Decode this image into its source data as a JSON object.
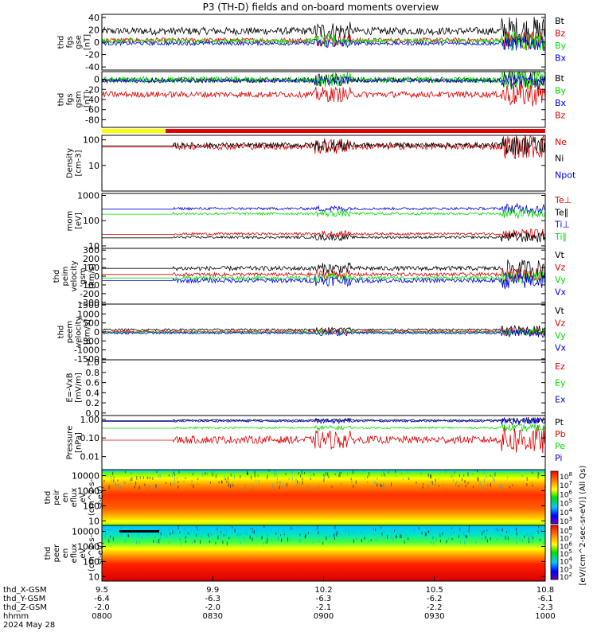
{
  "title": "P3 (TH-D) fields and on-board moments overview",
  "footer": {
    "row_labels": [
      "thd_X-GSM",
      "thd_Y-GSM",
      "thd_Z-GSM",
      "hhmm",
      "2024 May 28"
    ],
    "columns": [
      {
        "x": "9.5",
        "y": "-6.4",
        "z": "-2.0",
        "hhmm": "0800"
      },
      {
        "x": "9.9",
        "y": "-6.3",
        "z": "-2.0",
        "hhmm": "0830"
      },
      {
        "x": "10.2",
        "y": "-6.3",
        "z": "-2.1",
        "hhmm": "0900"
      },
      {
        "x": "10.5",
        "y": "-6.2",
        "z": "-2.2",
        "hhmm": "0930"
      },
      {
        "x": "10.8",
        "y": "-6.1",
        "z": "-2.3",
        "hhmm": "1000"
      }
    ]
  },
  "colorbar": {
    "label": "[eV/(cm^2-sec-sr-eV)] (All Qs)",
    "ticks_upper": [
      "10^8",
      "10^7",
      "10^6",
      "10^5",
      "10^4",
      "10^3"
    ],
    "ticks_lower": [
      "10^8",
      "10^7",
      "10^6",
      "10^5",
      "10^4",
      "10^3",
      "10^2"
    ]
  },
  "colors": {
    "black": "#000000",
    "red": "#e00000",
    "green": "#00dd00",
    "blue": "#0000e0",
    "yellow": "#ffff00"
  },
  "chart_data": [
    {
      "type": "line",
      "ylabel": [
        "thd",
        "fgs",
        "gse",
        "[nT]"
      ],
      "yticks": [
        "40",
        "20",
        "0",
        "-20",
        "-40"
      ],
      "ylim": [
        -45,
        45
      ],
      "series": [
        {
          "name": "Bt",
          "color": "black",
          "level": 18,
          "amp": 6
        },
        {
          "name": "Bz",
          "color": "red",
          "level": 3,
          "amp": 4
        },
        {
          "name": "By",
          "color": "green",
          "level": 2,
          "amp": 4
        },
        {
          "name": "Bx",
          "color": "blue",
          "level": -2,
          "amp": 3
        }
      ]
    },
    {
      "type": "line",
      "ylabel": [
        "thd",
        "fgs",
        "gsm",
        "[nT]"
      ],
      "yticks": [
        "0",
        "-20",
        "-40",
        "-60",
        "-80"
      ],
      "ylim": [
        -95,
        15
      ],
      "series": [
        {
          "name": "Bt",
          "color": "black",
          "level": -2,
          "amp": 5
        },
        {
          "name": "By",
          "color": "green",
          "level": -1,
          "amp": 6
        },
        {
          "name": "Bx",
          "color": "blue",
          "level": -3,
          "amp": 3
        },
        {
          "name": "Bz",
          "color": "red",
          "level": -30,
          "amp": 6
        }
      ]
    },
    {
      "type": "line",
      "log": true,
      "ylabel": [
        "Density",
        "[cm-3]"
      ],
      "yticks": [
        "100",
        "10"
      ],
      "ylim": [
        1,
        150
      ],
      "series": [
        {
          "name": "Ne",
          "color": "red",
          "level": 55,
          "amp": 0.12
        },
        {
          "name": "Ni",
          "color": "black",
          "level": 62,
          "amp": 0.1
        },
        {
          "name": "Npot",
          "color": "blue",
          "level": null,
          "amp": 0
        }
      ]
    },
    {
      "type": "line",
      "log": true,
      "ylabel": [
        "mom",
        "[eV]"
      ],
      "yticks": [
        "1000",
        "100",
        "10"
      ],
      "ylim": [
        8,
        1200
      ],
      "series": [
        {
          "name": "Te⊥",
          "color": "red",
          "level": 30,
          "amp": 0.05
        },
        {
          "name": "Te∥",
          "color": "black",
          "level": 22,
          "amp": 0.05
        },
        {
          "name": "Ti⊥",
          "color": "blue",
          "level": 300,
          "amp": 0.05
        },
        {
          "name": "Ti∥",
          "color": "green",
          "level": 190,
          "amp": 0.05
        }
      ]
    },
    {
      "type": "line",
      "ylabel": [
        "thd",
        "peim",
        "velocity",
        "gsm",
        "[km/s]"
      ],
      "yticks": [
        "300",
        "200",
        "100",
        "0",
        "-100",
        "-200",
        "-300"
      ],
      "ylim": [
        -320,
        320
      ],
      "series": [
        {
          "name": "Vt",
          "color": "black",
          "level": 90,
          "amp": 25
        },
        {
          "name": "Vz",
          "color": "red",
          "level": 20,
          "amp": 20
        },
        {
          "name": "Vy",
          "color": "green",
          "level": -20,
          "amp": 20
        },
        {
          "name": "Vx",
          "color": "blue",
          "level": -50,
          "amp": 25
        }
      ]
    },
    {
      "type": "line",
      "ylabel": [
        "thd",
        "peem",
        "velocity",
        "[km/s]"
      ],
      "yticks": [
        "1500",
        "1000",
        "500",
        "0",
        "-500",
        "-1000",
        "-1500"
      ],
      "ylim": [
        -1550,
        1550
      ],
      "series": [
        {
          "name": "Vt",
          "color": "black",
          "level": 120,
          "amp": 60
        },
        {
          "name": "Vz",
          "color": "red",
          "level": 20,
          "amp": 50
        },
        {
          "name": "Vy",
          "color": "green",
          "level": -20,
          "amp": 50
        },
        {
          "name": "Vx",
          "color": "blue",
          "level": -60,
          "amp": 60
        }
      ]
    },
    {
      "type": "line",
      "ylabel": [
        "E=-VxB",
        "[mV/m]"
      ],
      "yticks": [
        "1.0",
        "0.8",
        "0.6",
        "0.4",
        "0.2",
        "0.0"
      ],
      "ylim": [
        -0.05,
        1.05
      ],
      "series": [
        {
          "name": "Ez",
          "color": "red",
          "level": null,
          "amp": 0
        },
        {
          "name": "Ey",
          "color": "green",
          "level": null,
          "amp": 0
        },
        {
          "name": "Ex",
          "color": "blue",
          "level": null,
          "amp": 0
        }
      ]
    },
    {
      "type": "line",
      "log": true,
      "ylabel": [
        "Pressure",
        "[nPa]"
      ],
      "yticks": [
        "1.00",
        "0.10",
        "0.01"
      ],
      "ylim": [
        0.002,
        1.6
      ],
      "series": [
        {
          "name": "Pt",
          "color": "black",
          "level": 0.9,
          "amp": 0.04
        },
        {
          "name": "Pb",
          "color": "red",
          "level": 0.08,
          "amp": 0.2
        },
        {
          "name": "Pe",
          "color": "green",
          "level": 0.35,
          "amp": 0.05
        },
        {
          "name": "Pi",
          "color": "blue",
          "level": 0.8,
          "amp": 0.05
        }
      ]
    },
    {
      "type": "heatmap",
      "ylabel": [
        "thd",
        "peir",
        "en",
        "eflux",
        "eV",
        "(cm^2-s-",
        "sr-eV)"
      ],
      "yticks": [
        "10000",
        "1000",
        "100",
        "10"
      ],
      "ylim": [
        5,
        25000
      ]
    },
    {
      "type": "heatmap",
      "ylabel": [
        "thd",
        "peer",
        "en",
        "eflux",
        "eV",
        "(cm^2-s-",
        "sr-eV)"
      ],
      "yticks": [
        "10000",
        "1000",
        "100",
        "10"
      ],
      "ylim": [
        5,
        25000
      ]
    }
  ]
}
